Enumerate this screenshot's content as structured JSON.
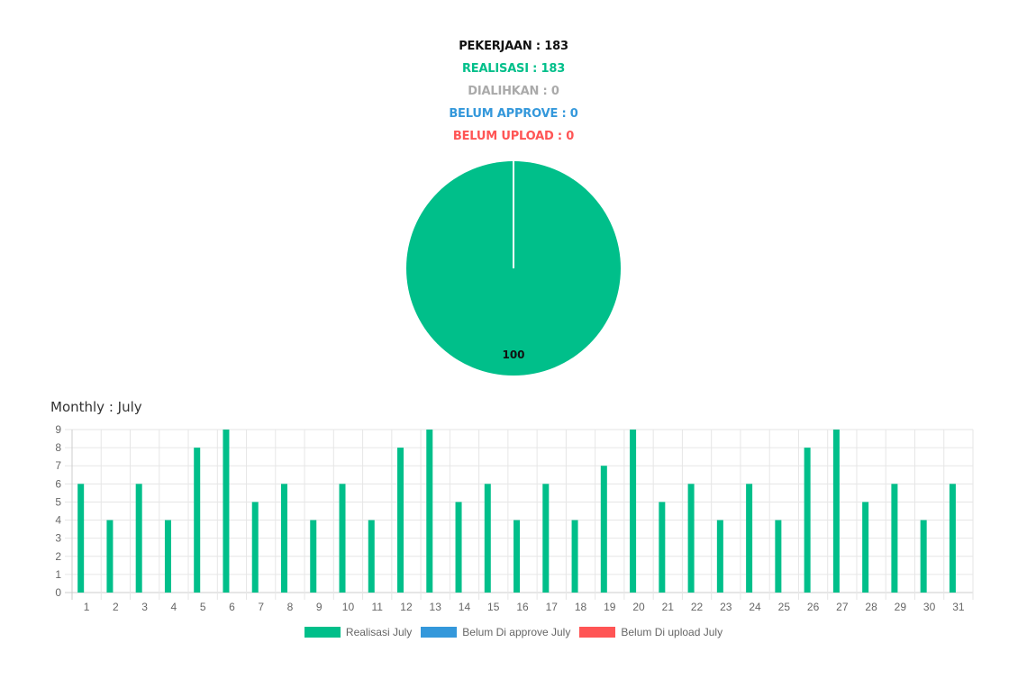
{
  "summary": {
    "pekerjaan": "PEKERJAAN : 183",
    "realisasi": "REALISASI : 183",
    "dialihkan": "DIALIHKAN : 0",
    "belum_approve": "BELUM APPROVE : 0",
    "belum_upload": "BELUM UPLOAD : 0"
  },
  "colors": {
    "pekerjaan": "#111111",
    "realisasi": "#00BF8A",
    "dialihkan": "#AAAAAA",
    "belum_approve": "#3498DB",
    "belum_upload": "#FF5555"
  },
  "monthly_title": "Monthly : July",
  "chart_data": [
    {
      "type": "pie",
      "slices": [
        {
          "label": "Realisasi",
          "value": 100,
          "color": "#00BF8A"
        }
      ],
      "data_labels": [
        "100"
      ]
    },
    {
      "type": "bar",
      "categories": [
        "1",
        "2",
        "3",
        "4",
        "5",
        "6",
        "7",
        "8",
        "9",
        "10",
        "11",
        "12",
        "13",
        "14",
        "15",
        "16",
        "17",
        "18",
        "19",
        "20",
        "21",
        "22",
        "23",
        "24",
        "25",
        "26",
        "27",
        "28",
        "29",
        "30",
        "31"
      ],
      "series": [
        {
          "name": "Realisasi July",
          "color": "#00BF8A",
          "values": [
            6,
            4,
            6,
            4,
            8,
            9,
            5,
            6,
            4,
            6,
            4,
            8,
            9,
            5,
            6,
            4,
            6,
            4,
            7,
            9,
            5,
            6,
            4,
            6,
            4,
            8,
            9,
            5,
            6,
            4,
            6
          ]
        },
        {
          "name": "Belum Di approve July",
          "color": "#3498DB",
          "values": [
            0,
            0,
            0,
            0,
            0,
            0,
            0,
            0,
            0,
            0,
            0,
            0,
            0,
            0,
            0,
            0,
            0,
            0,
            0,
            0,
            0,
            0,
            0,
            0,
            0,
            0,
            0,
            0,
            0,
            0,
            0
          ]
        },
        {
          "name": "Belum Di upload July",
          "color": "#FF5555",
          "values": [
            0,
            0,
            0,
            0,
            0,
            0,
            0,
            0,
            0,
            0,
            0,
            0,
            0,
            0,
            0,
            0,
            0,
            0,
            0,
            0,
            0,
            0,
            0,
            0,
            0,
            0,
            0,
            0,
            0,
            0,
            0
          ]
        }
      ],
      "yticks": [
        "0",
        "1",
        "2",
        "3",
        "4",
        "5",
        "6",
        "7",
        "8",
        "9"
      ],
      "ylim": [
        0,
        9
      ],
      "grid": true,
      "legend_position": "bottom"
    }
  ]
}
